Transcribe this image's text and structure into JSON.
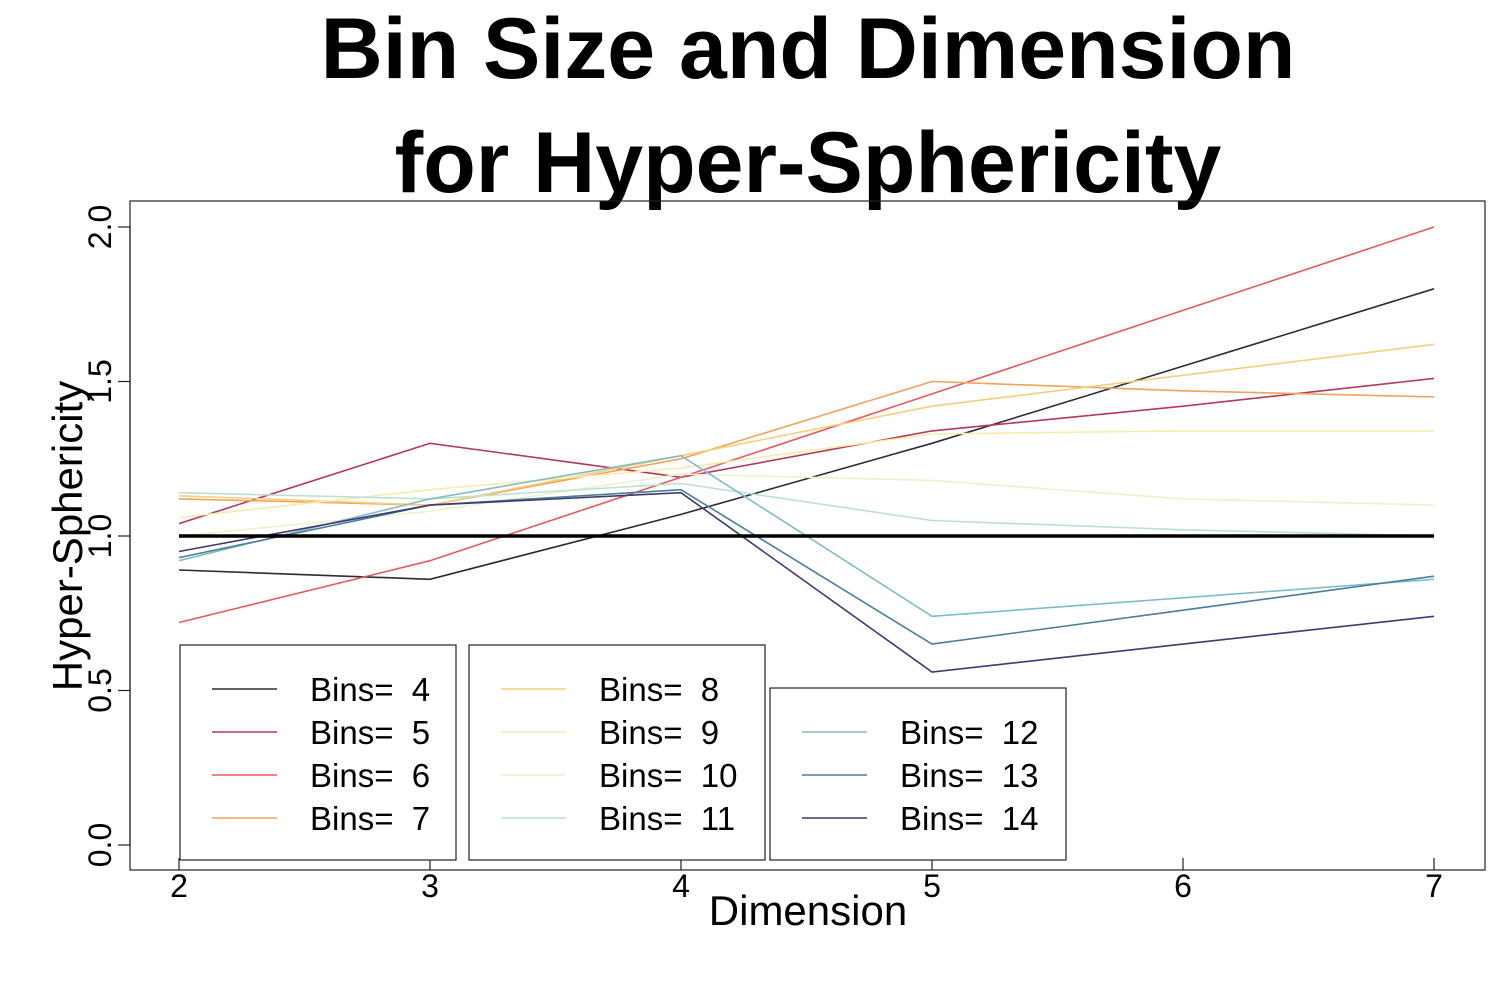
{
  "chart_data": {
    "type": "line",
    "title_lines": [
      "Bin Size and Dimension",
      "for Hyper-Sphericity"
    ],
    "xlabel": "Dimension",
    "ylabel": "Hyper-Sphericity",
    "x": [
      2,
      3,
      4,
      5,
      6,
      7
    ],
    "x_ticks": [
      "2",
      "3",
      "4",
      "5",
      "6",
      "7"
    ],
    "y_ticks": [
      "0.0",
      "0.5",
      "1.0",
      "1.5",
      "2.0"
    ],
    "y_tick_values": [
      0.0,
      0.5,
      1.0,
      1.5,
      2.0
    ],
    "xlim": [
      2,
      7
    ],
    "ylim": [
      0.0,
      2.0
    ],
    "reference_line": 1.0,
    "grid": false,
    "legend_boxes": [
      {
        "position": "bottom-left",
        "entries": [
          "Bins=  4",
          "Bins=  5",
          "Bins=  6",
          "Bins=  7"
        ]
      },
      {
        "position": "bottom-center-left",
        "entries": [
          "Bins=  8",
          "Bins=  9",
          "Bins=  10",
          "Bins=  11"
        ]
      },
      {
        "position": "bottom-center",
        "entries": [
          "Bins=  12",
          "Bins=  13",
          "Bins=  14"
        ]
      }
    ],
    "series": [
      {
        "name": "Bins=  4",
        "color": "#2b2b3a",
        "values": [
          0.89,
          0.86,
          1.07,
          1.3,
          1.55,
          1.8
        ]
      },
      {
        "name": "Bins=  5",
        "color": "#b5385a",
        "values": [
          1.04,
          1.3,
          1.19,
          1.34,
          1.42,
          1.51
        ]
      },
      {
        "name": "Bins=  6",
        "color": "#e8595b",
        "values": [
          0.72,
          0.92,
          1.19,
          1.46,
          1.73,
          2.0
        ]
      },
      {
        "name": "Bins=  7",
        "color": "#f0a35c",
        "values": [
          1.12,
          1.1,
          1.25,
          1.5,
          1.47,
          1.45
        ]
      },
      {
        "name": "Bins=  8",
        "color": "#f5cf7a",
        "values": [
          1.13,
          1.1,
          1.26,
          1.42,
          1.52,
          1.62
        ]
      },
      {
        "name": "Bins=  9",
        "color": "#f6ecae",
        "values": [
          1.06,
          1.15,
          1.22,
          1.33,
          1.34,
          1.34
        ]
      },
      {
        "name": "Bins=  10",
        "color": "#eaf3cc",
        "values": [
          1.0,
          1.08,
          1.2,
          1.18,
          1.12,
          1.1
        ]
      },
      {
        "name": "Bins=  11",
        "color": "#bde0cf",
        "values": [
          1.14,
          1.12,
          1.17,
          1.05,
          1.02,
          1.0
        ]
      },
      {
        "name": "Bins=  12",
        "color": "#7fbcc6",
        "values": [
          0.92,
          1.12,
          1.26,
          0.74,
          0.8,
          0.86
        ]
      },
      {
        "name": "Bins=  13",
        "color": "#4a7e9a",
        "values": [
          0.93,
          1.1,
          1.15,
          0.65,
          0.76,
          0.87
        ]
      },
      {
        "name": "Bins=  14",
        "color": "#3d3a72",
        "values": [
          0.95,
          1.1,
          1.14,
          0.56,
          0.65,
          0.74
        ]
      }
    ]
  }
}
